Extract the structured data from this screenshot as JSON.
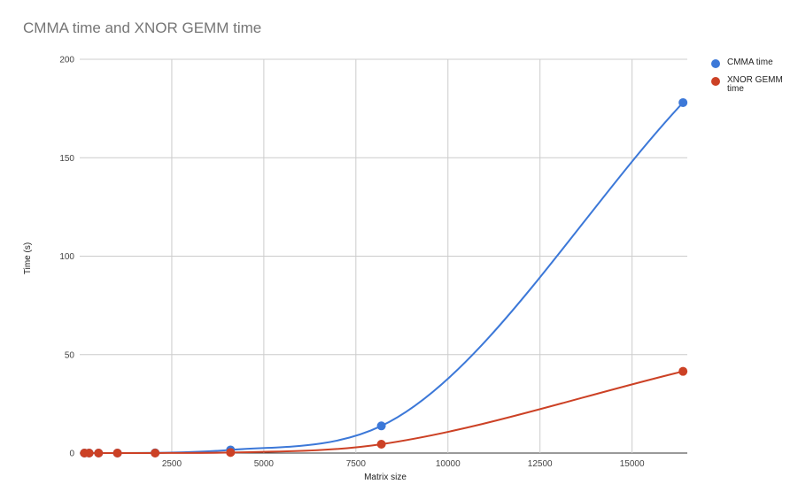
{
  "chart_data": {
    "type": "line",
    "title": "CMMA time and XNOR GEMM time",
    "xlabel": "Matrix size",
    "ylabel": "Time (s)",
    "xlim": [
      0,
      16500
    ],
    "ylim": [
      0,
      200
    ],
    "x_ticks": [
      2500,
      5000,
      7500,
      10000,
      12500,
      15000
    ],
    "y_ticks": [
      0,
      50,
      100,
      150,
      200
    ],
    "grid": true,
    "smooth": true,
    "legend_position": "right",
    "series": [
      {
        "name": "CMMA time",
        "color": "#3c78d8",
        "x": [
          128,
          256,
          512,
          1024,
          2048,
          4096,
          8192,
          16384
        ],
        "y": [
          0,
          0,
          0,
          0.01,
          0.1,
          1.6,
          13.8,
          178
        ]
      },
      {
        "name": "XNOR GEMM time",
        "color": "#cc4125",
        "x": [
          128,
          256,
          512,
          1024,
          2048,
          4096,
          8192,
          16384
        ],
        "y": [
          0,
          0,
          0,
          0,
          0.02,
          0.3,
          4.5,
          41.5
        ]
      }
    ]
  }
}
